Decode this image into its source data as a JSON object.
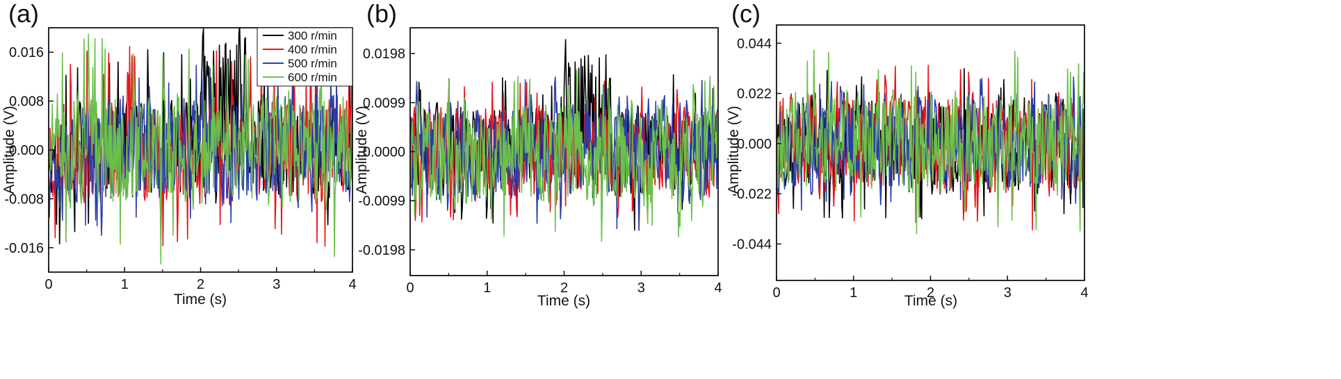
{
  "chart_data": [
    {
      "panel": "(a)",
      "type": "line",
      "xlabel": "Time (s)",
      "ylabel": "Amplitude (V)",
      "xlim": [
        0,
        4
      ],
      "ylim": [
        -0.02,
        0.02
      ],
      "xticks": [
        0,
        1,
        2,
        3,
        4
      ],
      "xtick_labels": [
        "0",
        "1",
        "2",
        "3",
        "4"
      ],
      "yticks": [
        -0.016,
        -0.008,
        0.0,
        0.008,
        0.016
      ],
      "ytick_labels": [
        "-0.016",
        "-0.008",
        "0.000",
        "0.008",
        "0.016"
      ],
      "legend_position": "top-right",
      "series": [
        {
          "name": "300 r/min",
          "color": "#000000",
          "amplitude": 0.0045,
          "spike": 0.0165,
          "burst": [
            1.9,
            2.6
          ],
          "seed": 11
        },
        {
          "name": "400 r/min",
          "color": "#e8141b",
          "amplitude": 0.0048,
          "spike": 0.017,
          "seed": 23
        },
        {
          "name": "500 r/min",
          "color": "#2b3ea8",
          "amplitude": 0.005,
          "spike": 0.014,
          "seed": 37
        },
        {
          "name": "600 r/min",
          "color": "#6cc04a",
          "amplitude": 0.0052,
          "spike": 0.019,
          "seed": 51
        }
      ]
    },
    {
      "panel": "(b)",
      "type": "line",
      "xlabel": "Time (s)",
      "ylabel": "Amplitude (V)",
      "xlim": [
        0,
        4
      ],
      "ylim": [
        -0.025,
        0.025
      ],
      "xticks": [
        0,
        1,
        2,
        3,
        4
      ],
      "xtick_labels": [
        "0",
        "1",
        "2",
        "3",
        "4"
      ],
      "yticks": [
        -0.0198,
        -0.0099,
        0.0,
        0.0099,
        0.0198
      ],
      "ytick_labels": [
        "-0.0198",
        "-0.0099",
        "0.0000",
        "0.0099",
        "0.0198"
      ],
      "series": [
        {
          "name": "300 r/min",
          "color": "#000000",
          "amplitude": 0.005,
          "spike": 0.016,
          "burst": [
            1.9,
            2.6
          ],
          "seed": 13
        },
        {
          "name": "400 r/min",
          "color": "#e8141b",
          "amplitude": 0.0052,
          "spike": 0.015,
          "seed": 29
        },
        {
          "name": "500 r/min",
          "color": "#2b3ea8",
          "amplitude": 0.0058,
          "spike": 0.016,
          "seed": 41
        },
        {
          "name": "600 r/min",
          "color": "#6cc04a",
          "amplitude": 0.006,
          "spike": 0.0185,
          "seed": 59
        }
      ]
    },
    {
      "panel": "(c)",
      "type": "line",
      "xlabel": "Time (s)",
      "ylabel": "Amplitude (V)",
      "xlim": [
        0,
        4
      ],
      "ylim": [
        -0.06,
        0.052
      ],
      "xticks": [
        0,
        1,
        2,
        3,
        4
      ],
      "xtick_labels": [
        "0",
        "1",
        "2",
        "3",
        "4"
      ],
      "yticks": [
        -0.044,
        -0.022,
        0.0,
        0.022,
        0.044
      ],
      "ytick_labels": [
        "-0.044",
        "-0.022",
        "0.000",
        "0.022",
        "0.044"
      ],
      "series": [
        {
          "name": "300 r/min",
          "color": "#000000",
          "amplitude": 0.012,
          "spike": 0.033,
          "seed": 17
        },
        {
          "name": "400 r/min",
          "color": "#e8141b",
          "amplitude": 0.0125,
          "spike": 0.038,
          "seed": 31
        },
        {
          "name": "500 r/min",
          "color": "#2b3ea8",
          "amplitude": 0.012,
          "spike": 0.03,
          "seed": 43
        },
        {
          "name": "600 r/min",
          "color": "#6cc04a",
          "amplitude": 0.0125,
          "spike": 0.042,
          "seed": 61
        }
      ]
    }
  ]
}
